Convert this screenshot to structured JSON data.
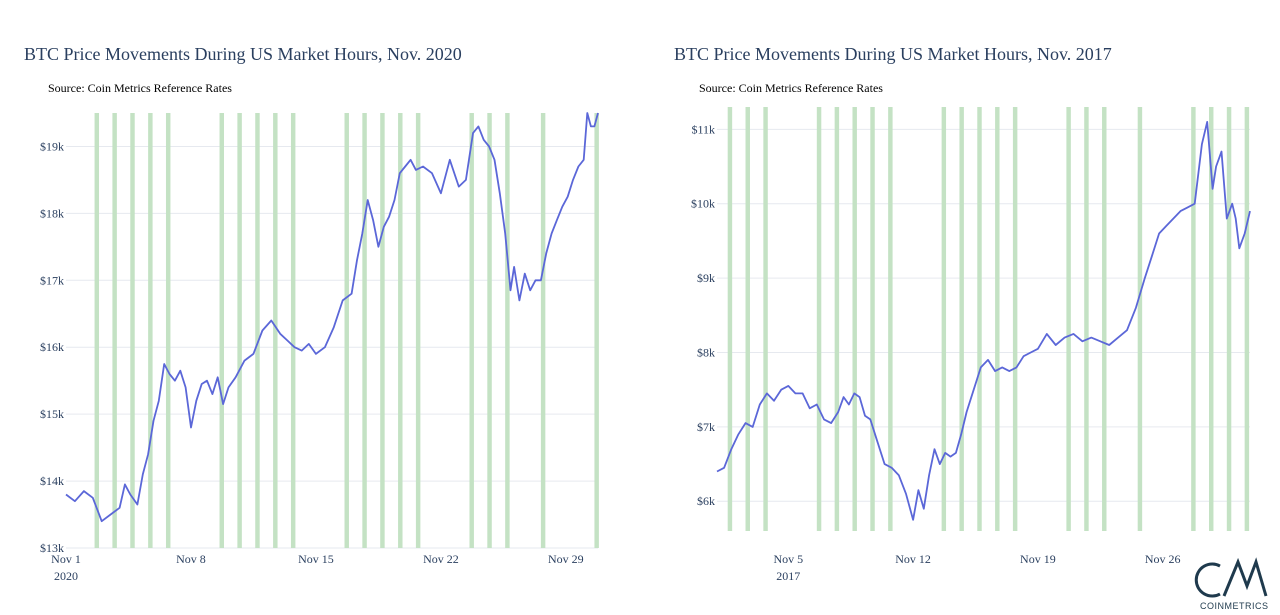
{
  "colors": {
    "line": "#5b67d8",
    "band": "#c4e2c4",
    "grid": "#e6e9ef",
    "title": "#2a3f5f",
    "logo": "#1f3a4d"
  },
  "logo": {
    "word": "COINMETRICS",
    "icon": "cm-monogram-icon"
  },
  "chart_data": [
    {
      "type": "line",
      "title": "BTC Price Movements During US Market Hours, Nov. 2020",
      "subtitle": "Source: Coin Metrics Reference Rates",
      "x_range": [
        1.0,
        30.8
      ],
      "y_range": [
        13000,
        19500
      ],
      "y_ticks": [
        13000,
        14000,
        15000,
        16000,
        17000,
        18000,
        19000
      ],
      "y_tick_labels": [
        "$13k",
        "$14k",
        "$15k",
        "$16k",
        "$17k",
        "$18k",
        "$19k"
      ],
      "x_ticks": [
        1,
        8,
        15,
        22,
        29
      ],
      "x_tick_labels": [
        "Nov 1",
        "Nov 8",
        "Nov 15",
        "Nov 22",
        "Nov 29"
      ],
      "x_tick_year": "2020",
      "grid": "horizontal",
      "shaded_bands": {
        "label": "US market hours",
        "days": [
          2.6,
          3.6,
          4.6,
          5.6,
          6.6,
          9.6,
          10.6,
          11.6,
          12.6,
          13.6,
          16.6,
          17.6,
          18.6,
          19.6,
          20.6,
          23.6,
          24.6,
          25.6,
          27.6,
          30.6
        ],
        "width_days": 0.25
      },
      "series": [
        {
          "x": [
            1.0,
            1.5,
            2.0,
            2.5,
            3.0,
            3.5,
            4.0,
            4.3,
            4.6,
            5.0,
            5.3,
            5.6,
            5.9,
            6.2,
            6.5,
            6.8,
            7.1,
            7.4,
            7.7,
            8.0,
            8.3,
            8.6,
            8.9,
            9.2,
            9.5,
            9.8,
            10.1,
            10.5,
            11.0,
            11.5,
            12.0,
            12.5,
            13.0,
            13.4,
            13.8,
            14.2,
            14.6,
            15.0,
            15.5,
            16.0,
            16.5,
            17.0,
            17.3,
            17.6,
            17.9,
            18.2,
            18.5,
            18.8,
            19.1,
            19.4,
            19.7,
            20.0,
            20.3,
            20.6,
            21.0,
            21.5,
            22.0,
            22.5,
            23.0,
            23.4,
            23.8,
            24.1,
            24.4,
            24.7,
            25.0,
            25.3,
            25.6,
            25.9,
            26.1,
            26.4,
            26.7,
            27.0,
            27.3,
            27.6,
            27.9,
            28.2,
            28.5,
            28.8,
            29.1,
            29.4,
            29.7,
            30.0,
            30.2,
            30.4,
            30.6,
            30.8
          ],
          "y": [
            13800,
            13700,
            13850,
            13750,
            13400,
            13500,
            13600,
            13950,
            13800,
            13650,
            14100,
            14400,
            14900,
            15200,
            15750,
            15600,
            15500,
            15650,
            15400,
            14800,
            15200,
            15450,
            15500,
            15300,
            15550,
            15150,
            15400,
            15550,
            15800,
            15900,
            16250,
            16400,
            16200,
            16100,
            16000,
            15950,
            16050,
            15900,
            16000,
            16300,
            16700,
            16800,
            17300,
            17700,
            18200,
            17900,
            17500,
            17800,
            17950,
            18200,
            18600,
            18700,
            18800,
            18650,
            18700,
            18600,
            18300,
            18800,
            18400,
            18500,
            19200,
            19300,
            19100,
            19000,
            18800,
            18300,
            17700,
            16850,
            17200,
            16700,
            17100,
            16850,
            17000,
            17000,
            17400,
            17700,
            17900,
            18100,
            18250,
            18500,
            18700,
            18800,
            19500,
            19300,
            19300,
            19500
          ]
        }
      ]
    },
    {
      "type": "line",
      "title": "BTC Price Movements During US Market Hours, Nov. 2017",
      "subtitle": "Source: Coin Metrics Reference Rates",
      "x_range": [
        1.0,
        30.9
      ],
      "y_range": [
        5600,
        11300
      ],
      "y_ticks": [
        6000,
        7000,
        8000,
        9000,
        10000,
        11000
      ],
      "y_tick_labels": [
        "$6k",
        "$7k",
        "$8k",
        "$9k",
        "$10k",
        "$11k"
      ],
      "x_ticks": [
        5,
        12,
        19,
        26
      ],
      "x_tick_labels": [
        "Nov 5",
        "Nov 12",
        "Nov 19",
        "Nov 26"
      ],
      "x_tick_year": "2017",
      "grid": "horizontal",
      "shaded_bands": {
        "label": "US market hours",
        "days": [
          1.6,
          2.6,
          3.6,
          6.6,
          7.6,
          8.6,
          9.6,
          10.6,
          13.6,
          14.6,
          15.6,
          16.6,
          17.6,
          20.6,
          21.6,
          22.6,
          24.6,
          27.6,
          28.6,
          29.6,
          30.6
        ],
        "width_days": 0.25
      },
      "series": [
        {
          "x": [
            1.0,
            1.4,
            1.8,
            2.2,
            2.6,
            3.0,
            3.4,
            3.8,
            4.2,
            4.6,
            5.0,
            5.4,
            5.8,
            6.2,
            6.6,
            7.0,
            7.4,
            7.8,
            8.1,
            8.4,
            8.7,
            9.0,
            9.3,
            9.6,
            10.0,
            10.4,
            10.8,
            11.2,
            11.6,
            12.0,
            12.3,
            12.6,
            12.9,
            13.2,
            13.5,
            13.8,
            14.1,
            14.4,
            14.7,
            15.0,
            15.4,
            15.8,
            16.2,
            16.6,
            17.0,
            17.4,
            17.8,
            18.2,
            18.6,
            19.0,
            19.5,
            20.0,
            20.5,
            21.0,
            21.5,
            22.0,
            22.5,
            23.0,
            23.5,
            24.0,
            24.5,
            25.0,
            25.4,
            25.8,
            26.2,
            26.6,
            27.0,
            27.4,
            27.8,
            28.2,
            28.5,
            28.8,
            29.0,
            29.3,
            29.6,
            29.9,
            30.1,
            30.3,
            30.6,
            30.9
          ],
          "y": [
            6400,
            6450,
            6700,
            6900,
            7050,
            7000,
            7300,
            7450,
            7350,
            7500,
            7550,
            7450,
            7450,
            7250,
            7300,
            7100,
            7050,
            7200,
            7400,
            7300,
            7450,
            7400,
            7150,
            7100,
            6800,
            6500,
            6450,
            6350,
            6100,
            5750,
            6150,
            5900,
            6350,
            6700,
            6500,
            6650,
            6600,
            6650,
            6900,
            7200,
            7500,
            7800,
            7900,
            7750,
            7800,
            7750,
            7800,
            7950,
            8000,
            8050,
            8250,
            8100,
            8200,
            8250,
            8150,
            8200,
            8150,
            8100,
            8200,
            8300,
            8600,
            9000,
            9300,
            9600,
            9700,
            9800,
            9900,
            9950,
            10000,
            10800,
            11100,
            10200,
            10500,
            10700,
            9800,
            10000,
            9800,
            9400,
            9600,
            9900
          ]
        }
      ]
    }
  ]
}
